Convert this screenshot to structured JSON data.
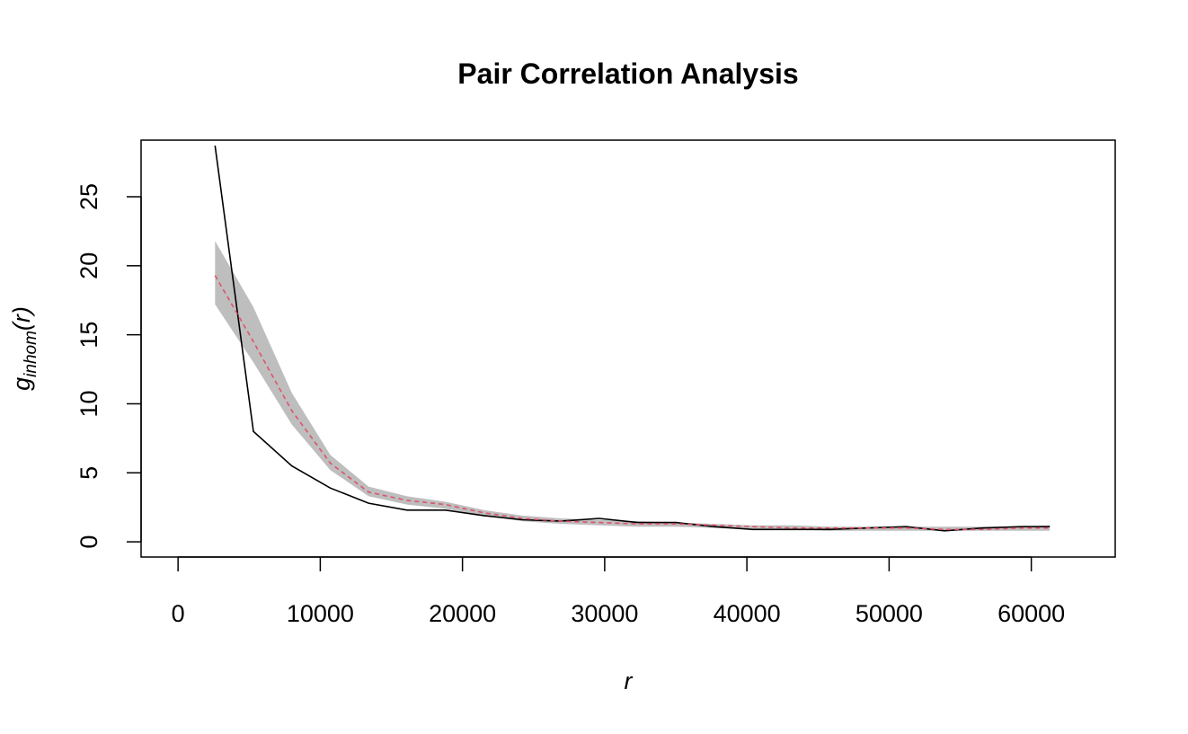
{
  "chart_data": {
    "type": "line",
    "title": "Pair Correlation Analysis",
    "xlabel": "r",
    "ylabel": {
      "base": "g",
      "subscript": "inhom",
      "suffix": "(r)"
    },
    "xlim": [
      -2600,
      65900
    ],
    "ylim": [
      -1.1,
      29.1
    ],
    "x_ticks": [
      0,
      10000,
      20000,
      30000,
      40000,
      50000,
      60000
    ],
    "x_tick_labels": [
      "0",
      "10000",
      "20000",
      "30000",
      "40000",
      "50000",
      "60000"
    ],
    "y_ticks": [
      0,
      5,
      10,
      15,
      20,
      25
    ],
    "y_tick_labels": [
      "0",
      "5",
      "10",
      "15",
      "20",
      "25"
    ],
    "grid": false,
    "legend": "none",
    "colors": {
      "observed": "#000000",
      "theoretical": "#DF536B",
      "envelope": "#BEBEBE"
    },
    "x": [
      2600,
      5300,
      8000,
      10700,
      13400,
      16100,
      18800,
      21500,
      24200,
      26900,
      29600,
      32300,
      35000,
      37700,
      40400,
      43100,
      45800,
      48500,
      51200,
      53900,
      56600,
      59300,
      61300
    ],
    "series": [
      {
        "role": "observed",
        "style": "solid",
        "values": [
          28.7,
          8.0,
          5.5,
          3.9,
          2.8,
          2.3,
          2.3,
          1.9,
          1.6,
          1.5,
          1.7,
          1.4,
          1.4,
          1.1,
          0.9,
          0.9,
          0.9,
          1.0,
          1.1,
          0.8,
          1.0,
          1.1,
          1.1
        ]
      },
      {
        "role": "theoretical",
        "style": "dashed",
        "values": [
          19.3,
          14.5,
          9.5,
          5.7,
          3.6,
          3.0,
          2.7,
          2.1,
          1.7,
          1.5,
          1.4,
          1.3,
          1.3,
          1.2,
          1.1,
          1.0,
          1.0,
          1.0,
          1.0,
          0.9,
          0.9,
          1.0,
          1.0
        ]
      },
      {
        "role": "envelope_high",
        "style": "band",
        "values": [
          21.8,
          17.0,
          10.8,
          6.3,
          4.0,
          3.3,
          2.9,
          2.3,
          1.9,
          1.7,
          1.6,
          1.5,
          1.4,
          1.3,
          1.2,
          1.2,
          1.1,
          1.1,
          1.1,
          1.1,
          1.1,
          1.1,
          1.2
        ]
      },
      {
        "role": "envelope_low",
        "style": "band",
        "values": [
          17.2,
          13.0,
          8.5,
          5.2,
          3.3,
          2.7,
          2.4,
          1.9,
          1.5,
          1.3,
          1.2,
          1.1,
          1.1,
          1.0,
          0.9,
          0.9,
          0.8,
          0.8,
          0.8,
          0.8,
          0.8,
          0.8,
          0.8
        ]
      }
    ]
  }
}
